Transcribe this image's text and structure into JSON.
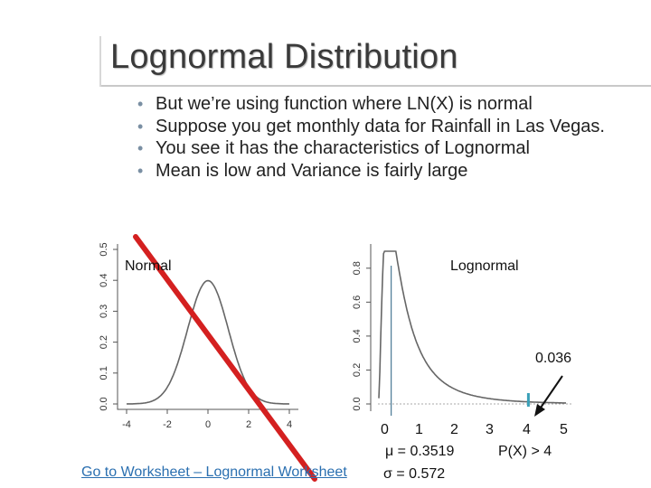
{
  "slide": {
    "title": "Lognormal Distribution",
    "bullets": [
      "But we’re using function where LN(X) is normal",
      "Suppose you get monthly data for Rainfall in Las Vegas.",
      "You see it has the characteristics of Lognormal",
      "Mean is low and Variance is fairly large"
    ],
    "link_text": "Go to Worksheet – Lognormal Worksheet"
  },
  "annotations": {
    "normal_label": "Normal",
    "lognormal_label": "Lognormal",
    "tail_prob": "0.036",
    "x_numbers": [
      "0",
      "1",
      "2",
      "3",
      "4",
      "5"
    ],
    "mu": "μ = 0.3519",
    "sigma": "σ = 0.572",
    "prob_label": "P(X) > 4"
  },
  "colors": {
    "cross_out": "#d42020",
    "curve": "#666666",
    "mean_line": "#4a7a95",
    "tail_bar": "#3aa0b8",
    "link": "#2a6fb0"
  },
  "chart_data": [
    {
      "type": "line",
      "name_hint": "normal-density-plot",
      "x": [
        -4,
        -3,
        -2,
        -1,
        0,
        1,
        2,
        3,
        4
      ],
      "y": [
        0.0001,
        0.0044,
        0.054,
        0.242,
        0.399,
        0.242,
        0.054,
        0.0044,
        0.0001
      ],
      "xticks": [
        "-4",
        "-2",
        "0",
        "2",
        "4"
      ],
      "yticks": [
        "0.0",
        "0.1",
        "0.2",
        "0.3",
        "0.4",
        "0.5"
      ],
      "xlim": [
        -4,
        4
      ],
      "ylim": [
        0,
        0.5
      ],
      "crossed_out": true
    },
    {
      "type": "line",
      "name_hint": "lognormal-density-plot",
      "x": [
        0.05,
        0.1,
        0.15,
        0.2,
        0.3,
        0.4,
        0.5,
        0.7,
        1.0,
        1.5,
        2.0,
        2.5,
        3.0,
        4.0,
        5.0
      ],
      "y": [
        0.18,
        0.55,
        0.8,
        0.86,
        0.76,
        0.62,
        0.5,
        0.33,
        0.19,
        0.08,
        0.04,
        0.022,
        0.013,
        0.005,
        0.002
      ],
      "yticks": [
        "0.0",
        "0.2",
        "0.4",
        "0.6",
        "0.8"
      ],
      "xlim": [
        0,
        5
      ],
      "ylim": [
        0,
        0.9
      ],
      "mean_marker_x": 0.3519,
      "tail_threshold_x": 4,
      "tail_probability": 0.036
    }
  ]
}
